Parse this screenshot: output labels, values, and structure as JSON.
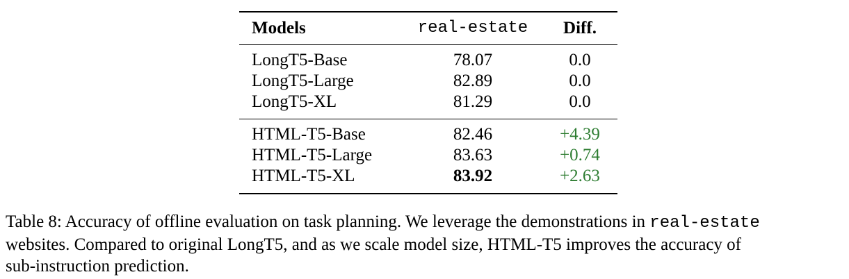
{
  "table": {
    "headers": {
      "model": "Models",
      "dataset": "real-estate",
      "diff": "Diff."
    },
    "groups": [
      {
        "rows": [
          {
            "model": "LongT5-Base",
            "value": "78.07",
            "diff": "0.0"
          },
          {
            "model": "LongT5-Large",
            "value": "82.89",
            "diff": "0.0"
          },
          {
            "model": "LongT5-XL",
            "value": "81.29",
            "diff": "0.0"
          }
        ]
      },
      {
        "rows": [
          {
            "model": "HTML-T5-Base",
            "value": "82.46",
            "diff": "+4.39"
          },
          {
            "model": "HTML-T5-Large",
            "value": "83.63",
            "diff": "+0.74"
          },
          {
            "model": "HTML-T5-XL",
            "value": "83.92",
            "diff": "+2.63"
          }
        ]
      }
    ],
    "highlight_color": "#2e7d32"
  },
  "caption": {
    "line1_prefix": "Table 8: Accuracy of offline evaluation on task planning. We leverage the demonstrations in ",
    "line1_mono": "real-estate",
    "line2": "websites.  Compared to original LongT5, and as we scale model size, HTML-T5 improves the accuracy of",
    "line3": "sub-instruction prediction."
  }
}
